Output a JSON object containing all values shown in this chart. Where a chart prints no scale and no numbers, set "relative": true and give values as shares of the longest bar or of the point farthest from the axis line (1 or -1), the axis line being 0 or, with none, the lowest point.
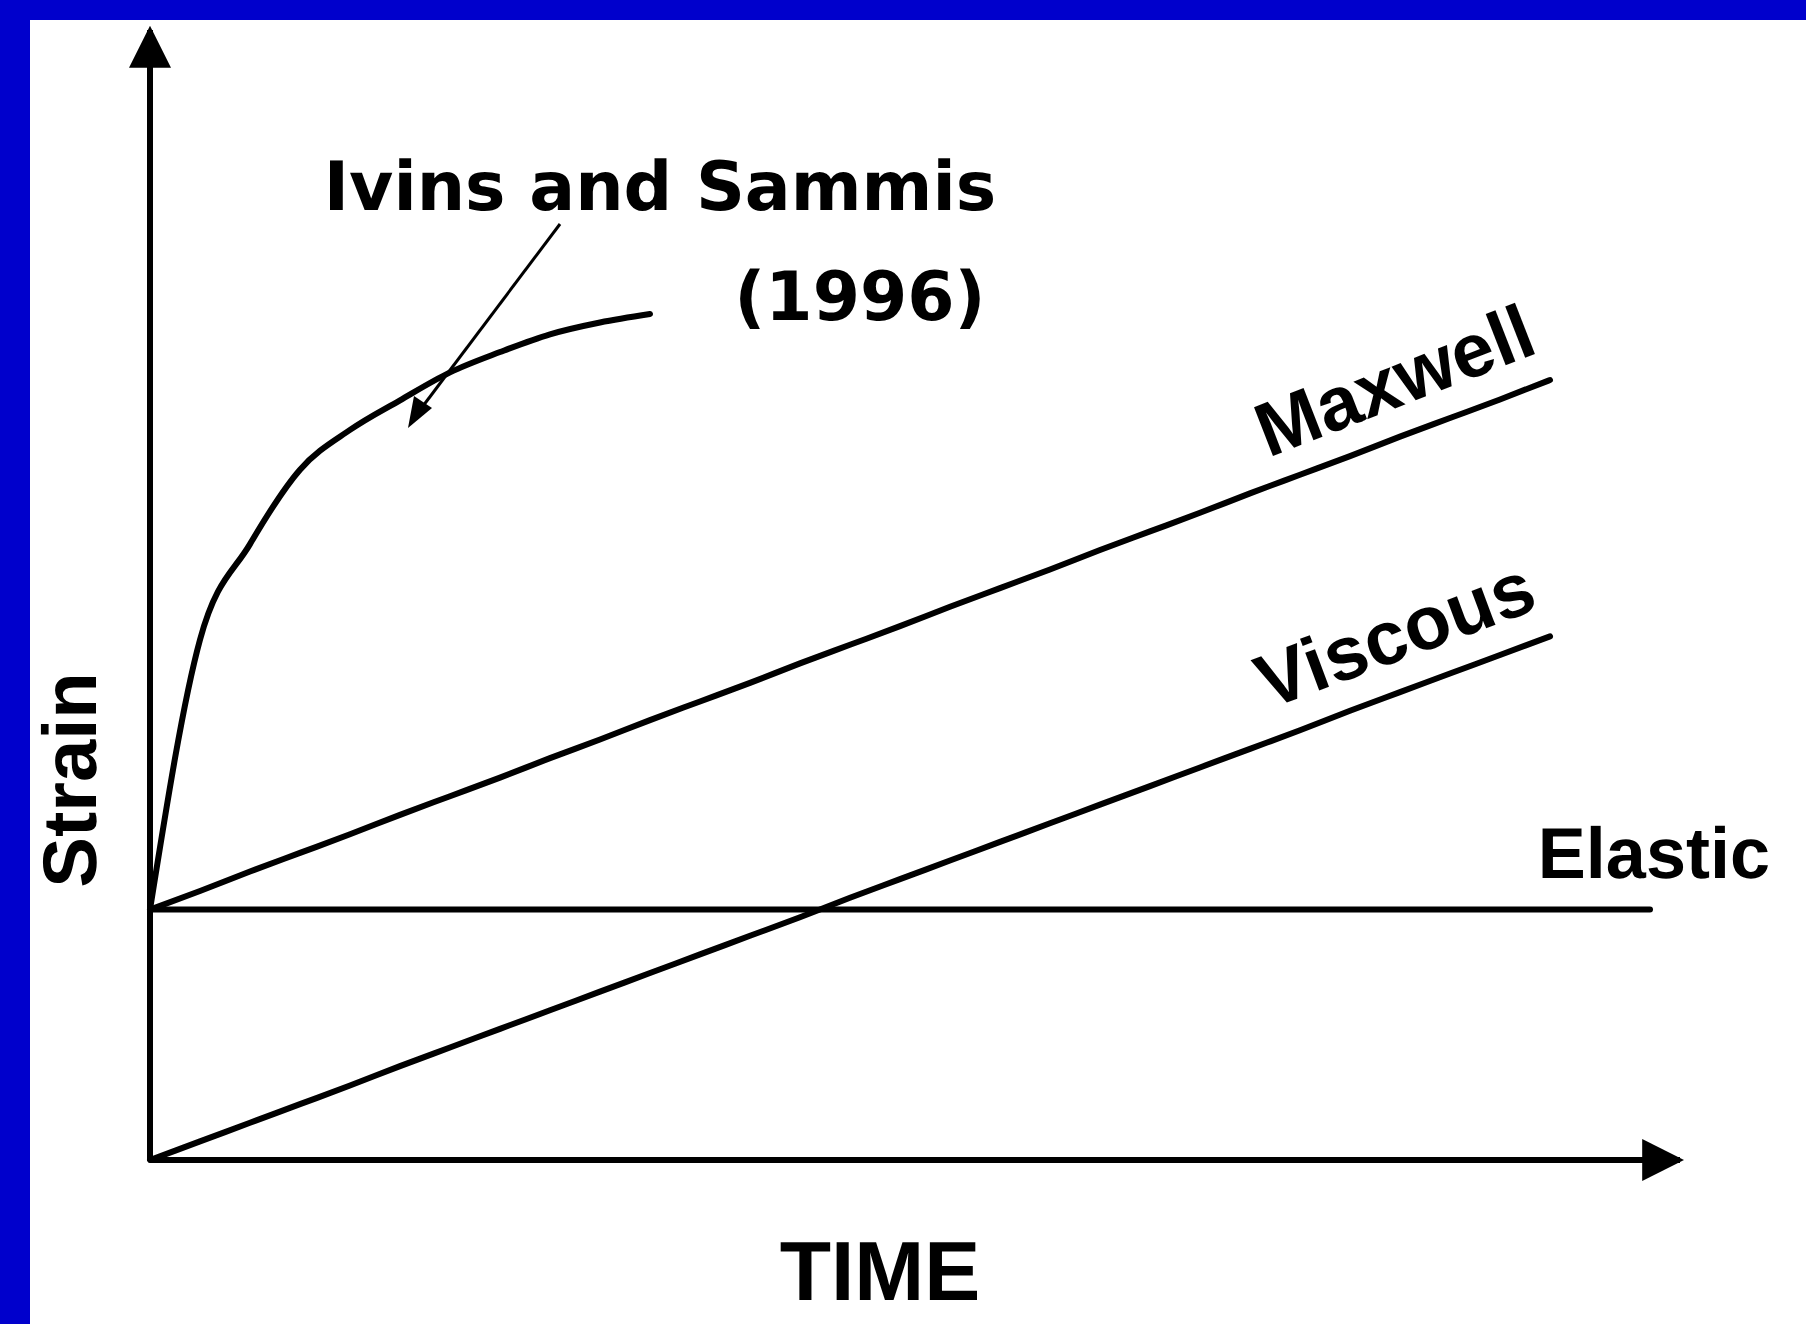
{
  "chart_data": {
    "type": "line",
    "relative": true,
    "xlabel": "TIME",
    "ylabel": "Strain",
    "marker": "none",
    "line_style": "solid",
    "categories": [
      null,
      null,
      null,
      null,
      null,
      null,
      null,
      null,
      null,
      null,
      null,
      null,
      null,
      null,
      null,
      null,
      null,
      null,
      null,
      null,
      null,
      null,
      null,
      null,
      null,
      null,
      null,
      null,
      null,
      null,
      null
    ],
    "series": [
      {
        "name": "Ivins and Sammis (1996)",
        "color": "#000000",
        "values": [
          0.296,
          0.615,
          0.728,
          0.816,
          0.863,
          0.898,
          0.931,
          0.955,
          0.976,
          0.99,
          1,
          null,
          null,
          null,
          null,
          null,
          null,
          null,
          null,
          null,
          null,
          null,
          null,
          null,
          null,
          null,
          null,
          null,
          null,
          null,
          null
        ]
      },
      {
        "name": "Maxwell",
        "color": "#000000",
        "values": [
          0.296,
          0.318,
          0.341,
          0.363,
          0.385,
          0.408,
          0.43,
          0.452,
          0.475,
          0.497,
          0.52,
          0.542,
          0.564,
          0.587,
          0.609,
          0.631,
          0.654,
          0.676,
          0.698,
          0.721,
          0.743,
          0.765,
          0.788,
          0.81,
          0.832,
          0.855,
          0.877,
          0.899,
          0.922,
          null,
          null
        ]
      },
      {
        "name": "Viscous",
        "color": "#000000",
        "values": [
          0,
          0.022,
          0.044,
          0.066,
          0.088,
          0.111,
          0.133,
          0.155,
          0.177,
          0.199,
          0.221,
          0.243,
          0.265,
          0.287,
          0.31,
          0.332,
          0.354,
          0.376,
          0.398,
          0.42,
          0.442,
          0.464,
          0.486,
          0.508,
          0.531,
          0.553,
          0.575,
          0.597,
          0.619,
          null,
          null
        ]
      },
      {
        "name": "Elastic",
        "color": "#000000",
        "values": [
          0.296,
          0.296,
          0.296,
          0.296,
          0.296,
          0.296,
          0.296,
          0.296,
          0.296,
          0.296,
          0.296,
          0.296,
          0.296,
          0.296,
          0.296,
          0.296,
          0.296,
          0.296,
          0.296,
          0.296,
          0.296,
          0.296,
          0.296,
          0.296,
          0.296,
          0.296,
          0.296,
          0.296,
          0.296,
          0.296,
          0.296
        ]
      }
    ]
  }
}
